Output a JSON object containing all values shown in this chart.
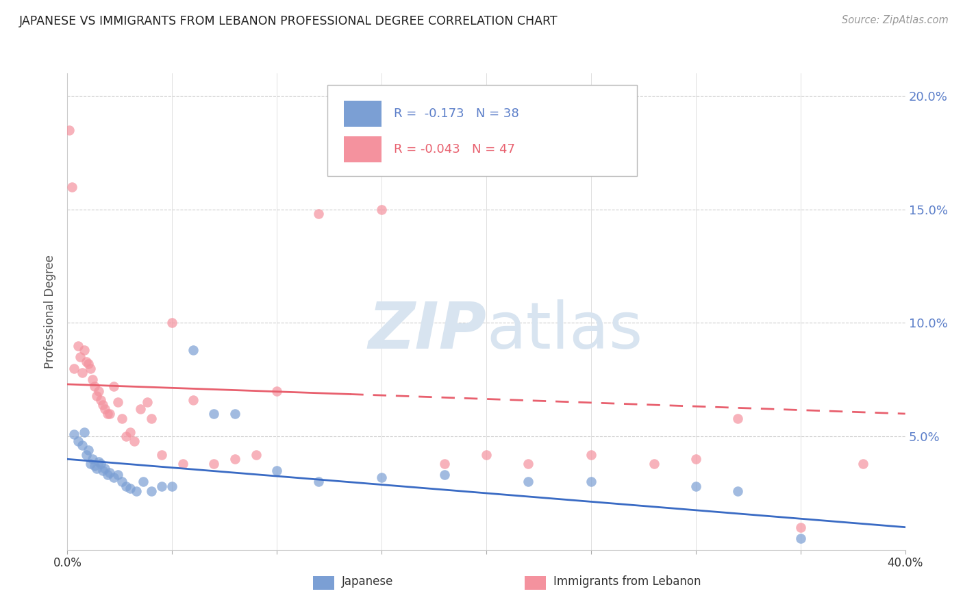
{
  "title": "JAPANESE VS IMMIGRANTS FROM LEBANON PROFESSIONAL DEGREE CORRELATION CHART",
  "source": "Source: ZipAtlas.com",
  "ylabel": "Professional Degree",
  "xlim": [
    0.0,
    0.4
  ],
  "ylim": [
    0.0,
    0.21
  ],
  "color_blue": "#7B9FD4",
  "color_pink": "#F4929E",
  "color_blue_line": "#3A6BC4",
  "color_pink_line": "#E8606E",
  "color_axis_right": "#5B7EC9",
  "watermark_color": "#D8E4F0",
  "legend_label1": "Japanese",
  "legend_label2": "Immigrants from Lebanon",
  "japanese_x": [
    0.003,
    0.005,
    0.007,
    0.008,
    0.009,
    0.01,
    0.011,
    0.012,
    0.013,
    0.014,
    0.015,
    0.016,
    0.017,
    0.018,
    0.019,
    0.02,
    0.022,
    0.024,
    0.026,
    0.028,
    0.03,
    0.033,
    0.036,
    0.04,
    0.045,
    0.05,
    0.06,
    0.07,
    0.08,
    0.1,
    0.12,
    0.15,
    0.18,
    0.22,
    0.25,
    0.3,
    0.32,
    0.35
  ],
  "japanese_y": [
    0.051,
    0.048,
    0.046,
    0.052,
    0.042,
    0.044,
    0.038,
    0.04,
    0.037,
    0.036,
    0.039,
    0.038,
    0.035,
    0.036,
    0.033,
    0.034,
    0.032,
    0.033,
    0.03,
    0.028,
    0.027,
    0.026,
    0.03,
    0.026,
    0.028,
    0.028,
    0.088,
    0.06,
    0.06,
    0.035,
    0.03,
    0.032,
    0.033,
    0.03,
    0.03,
    0.028,
    0.026,
    0.005
  ],
  "lebanon_x": [
    0.001,
    0.002,
    0.003,
    0.005,
    0.006,
    0.007,
    0.008,
    0.009,
    0.01,
    0.011,
    0.012,
    0.013,
    0.014,
    0.015,
    0.016,
    0.017,
    0.018,
    0.019,
    0.02,
    0.022,
    0.024,
    0.026,
    0.028,
    0.03,
    0.032,
    0.035,
    0.038,
    0.04,
    0.045,
    0.05,
    0.055,
    0.06,
    0.07,
    0.08,
    0.09,
    0.1,
    0.12,
    0.15,
    0.18,
    0.2,
    0.22,
    0.25,
    0.28,
    0.3,
    0.32,
    0.35,
    0.38
  ],
  "lebanon_y": [
    0.185,
    0.16,
    0.08,
    0.09,
    0.085,
    0.078,
    0.088,
    0.083,
    0.082,
    0.08,
    0.075,
    0.072,
    0.068,
    0.07,
    0.066,
    0.064,
    0.062,
    0.06,
    0.06,
    0.072,
    0.065,
    0.058,
    0.05,
    0.052,
    0.048,
    0.062,
    0.065,
    0.058,
    0.042,
    0.1,
    0.038,
    0.066,
    0.038,
    0.04,
    0.042,
    0.07,
    0.148,
    0.15,
    0.038,
    0.042,
    0.038,
    0.042,
    0.038,
    0.04,
    0.058,
    0.01,
    0.038
  ],
  "trend_jap_x0": 0.0,
  "trend_jap_x1": 0.4,
  "trend_jap_y0": 0.04,
  "trend_jap_y1": 0.01,
  "trend_leb_x0": 0.0,
  "trend_leb_solid_x1": 0.135,
  "trend_leb_dash_x1": 0.4,
  "trend_leb_y0": 0.073,
  "trend_leb_y1": 0.06
}
